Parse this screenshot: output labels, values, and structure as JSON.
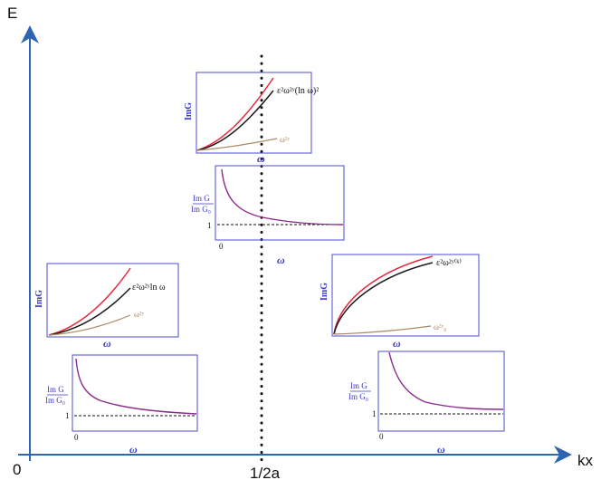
{
  "axes": {
    "y_label": "E",
    "x_label": "kx",
    "origin_label": "0",
    "x_mark_label": "1/2a"
  },
  "axis_color": "#2f64b0",
  "panel_border_color": "#4b4bd6",
  "curve_colors": {
    "red": "#e8293c",
    "black": "#1a1a1a",
    "brown": "#a98a63",
    "purple": "#8a2a8a"
  },
  "panels": {
    "top_img": {
      "ylabel": "ImG",
      "xlabel": "ω",
      "curve_black_label": "ε²ω²ʸ(ln ω)²",
      "curve_brown_label": "ω²ʸ"
    },
    "top_ratio": {
      "ylabel_num": "Im G",
      "ylabel_den": "Im G₀",
      "tick_y": "1",
      "tick_x": "0",
      "xlabel": "ω"
    },
    "left_img": {
      "ylabel": "ImG",
      "xlabel": "ω",
      "curve_black_label": "ε²ω²ʸln ω",
      "curve_brown_label": "ω²ʸ"
    },
    "left_ratio": {
      "ylabel_num": "Im G",
      "ylabel_den": "Im G₀",
      "tick_y": "1",
      "tick_x": "0",
      "xlabel": "ω"
    },
    "right_img": {
      "ylabel": "ImG",
      "xlabel": "ω",
      "curve_black_label": "ε²ω²ʸ⁽ᵏ⁾",
      "curve_brown_label": "ω²ʸ₀"
    },
    "right_ratio": {
      "ylabel_num": "Im G",
      "ylabel_den": "Im G₀",
      "tick_y": "1",
      "tick_x": "0",
      "xlabel": "ω"
    }
  }
}
